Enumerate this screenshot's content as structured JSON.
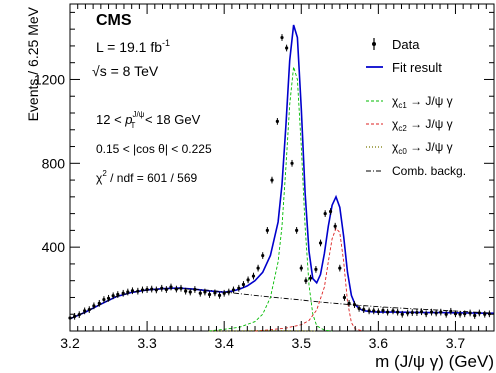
{
  "chart_data": {
    "type": "line",
    "xlabel": "m (J/ψ γ) (GeV)",
    "ylabel": "Events / 6.25 MeV",
    "xlim": [
      3.2,
      3.75
    ],
    "ylim": [
      0,
      1560
    ],
    "x_ticks": [
      3.2,
      3.3,
      3.4,
      3.5,
      3.6,
      3.7
    ],
    "x_tick_labels": [
      "3.2",
      "3.3",
      "3.4",
      "3.5",
      "3.6",
      "3.7"
    ],
    "y_ticks": [
      400,
      800,
      1200
    ],
    "y_tick_labels": [
      "400",
      "800",
      "1200"
    ],
    "annotations": {
      "experiment": "CMS",
      "lumi_prefix": "L = 19.1 fb",
      "lumi_sup": "-1",
      "energy_sqrt": "√",
      "energy_rest": "s = 8 TeV",
      "pt_left": "12 < ",
      "pt_p": "p",
      "pt_sup": "J/ψ",
      "pt_sub": "T",
      "pt_right": " < 18 GeV",
      "cos_cut": "0.15 < |cos θ| < 0.225",
      "chi2_left": "χ",
      "chi2_sup": "2",
      "chi2_right": " / ndf = 601 / 569"
    },
    "legend": {
      "placement": "top-right",
      "entries": [
        {
          "label": "Data",
          "style": "points",
          "color": "#000000"
        },
        {
          "label": "Fit result",
          "style": "solid",
          "color": "#0000cc"
        },
        {
          "label_main": "χ",
          "label_sub": "c1",
          "label_rest": " → J/ψ γ",
          "style": "dashed",
          "color": "#00bb00"
        },
        {
          "label_main": "χ",
          "label_sub": "c2",
          "label_rest": " → J/ψ γ",
          "style": "dashed",
          "color": "#dd2222"
        },
        {
          "label_main": "χ",
          "label_sub": "c0",
          "label_rest": " → J/ψ γ",
          "style": "dotted",
          "color": "#777700"
        },
        {
          "label": "Comb. backg.",
          "style": "dashdot",
          "color": "#000000"
        }
      ]
    },
    "series": [
      {
        "name": "Data",
        "kind": "points",
        "x": [
          3.2,
          3.206,
          3.212,
          3.219,
          3.225,
          3.231,
          3.238,
          3.244,
          3.25,
          3.256,
          3.262,
          3.269,
          3.275,
          3.281,
          3.288,
          3.294,
          3.3,
          3.306,
          3.312,
          3.319,
          3.325,
          3.331,
          3.338,
          3.344,
          3.35,
          3.356,
          3.362,
          3.369,
          3.375,
          3.381,
          3.388,
          3.394,
          3.4,
          3.406,
          3.412,
          3.419,
          3.425,
          3.431,
          3.438,
          3.444,
          3.45,
          3.456,
          3.462,
          3.469,
          3.475,
          3.481,
          3.488,
          3.494,
          3.5,
          3.506,
          3.512,
          3.519,
          3.525,
          3.531,
          3.538,
          3.544,
          3.55,
          3.556,
          3.562,
          3.569,
          3.575,
          3.581,
          3.588,
          3.594,
          3.6,
          3.606,
          3.612,
          3.619,
          3.625,
          3.631,
          3.638,
          3.644,
          3.65,
          3.656,
          3.662,
          3.669,
          3.675,
          3.681,
          3.688,
          3.694,
          3.7,
          3.706,
          3.712,
          3.719,
          3.725,
          3.731,
          3.738,
          3.744
        ],
        "y": [
          62,
          70,
          78,
          96,
          102,
          120,
          132,
          150,
          156,
          168,
          174,
          180,
          186,
          192,
          190,
          196,
          198,
          200,
          196,
          204,
          198,
          210,
          200,
          204,
          190,
          186,
          198,
          180,
          186,
          174,
          182,
          170,
          180,
          186,
          196,
          204,
          222,
          244,
          262,
          300,
          360,
          480,
          720,
          1000,
          1400,
          1350,
          800,
          480,
          300,
          240,
          252,
          294,
          420,
          560,
          570,
          500,
          300,
          160,
          132,
          126,
          108,
          102,
          96,
          96,
          92,
          98,
          90,
          96,
          90,
          80,
          86,
          88,
          88,
          92,
          82,
          90,
          86,
          90,
          80,
          94,
          82,
          80,
          82,
          86,
          74,
          86,
          80,
          82
        ],
        "errors": 16
      },
      {
        "name": "Fit result",
        "kind": "line",
        "x": [
          3.2,
          3.22,
          3.24,
          3.26,
          3.28,
          3.3,
          3.32,
          3.34,
          3.36,
          3.38,
          3.4,
          3.41,
          3.42,
          3.43,
          3.44,
          3.45,
          3.46,
          3.47,
          3.475,
          3.48,
          3.485,
          3.49,
          3.495,
          3.5,
          3.505,
          3.51,
          3.515,
          3.52,
          3.525,
          3.53,
          3.535,
          3.54,
          3.545,
          3.55,
          3.555,
          3.56,
          3.565,
          3.57,
          3.575,
          3.58,
          3.59,
          3.6,
          3.62,
          3.64,
          3.66,
          3.68,
          3.7,
          3.72,
          3.74,
          3.75
        ],
        "y": [
          58,
          90,
          128,
          164,
          184,
          196,
          202,
          205,
          200,
          192,
          185,
          190,
          200,
          215,
          240,
          280,
          360,
          520,
          700,
          980,
          1290,
          1460,
          1400,
          1060,
          660,
          380,
          250,
          230,
          270,
          370,
          500,
          600,
          640,
          590,
          450,
          280,
          170,
          125,
          108,
          98,
          92,
          90,
          90,
          89,
          88,
          88,
          87,
          86,
          85,
          85
        ]
      },
      {
        "name": "χc1 → J/ψ γ",
        "kind": "dashed",
        "x": [
          3.38,
          3.4,
          3.42,
          3.44,
          3.45,
          3.46,
          3.47,
          3.475,
          3.48,
          3.485,
          3.49,
          3.495,
          3.5,
          3.505,
          3.51,
          3.515,
          3.52,
          3.53,
          3.54
        ],
        "y": [
          0,
          8,
          18,
          45,
          80,
          160,
          330,
          500,
          780,
          1080,
          1260,
          1200,
          880,
          500,
          220,
          80,
          25,
          4,
          0
        ]
      },
      {
        "name": "χc2 → J/ψ γ",
        "kind": "dashed",
        "x": [
          3.44,
          3.46,
          3.48,
          3.5,
          3.51,
          3.52,
          3.53,
          3.535,
          3.54,
          3.545,
          3.55,
          3.555,
          3.56,
          3.565,
          3.57,
          3.58
        ],
        "y": [
          0,
          6,
          14,
          30,
          50,
          100,
          210,
          330,
          440,
          490,
          470,
          330,
          140,
          40,
          10,
          0
        ]
      },
      {
        "name": "χc0 → J/ψ γ",
        "kind": "dotted",
        "x": [
          3.38,
          3.42,
          3.44,
          3.46,
          3.48,
          3.5,
          3.52
        ],
        "y": [
          0,
          1,
          2,
          3,
          2,
          1,
          0
        ]
      },
      {
        "name": "Comb. backg.",
        "kind": "dashdot",
        "x": [
          3.2,
          3.22,
          3.24,
          3.26,
          3.28,
          3.3,
          3.32,
          3.34,
          3.36,
          3.38,
          3.4,
          3.42,
          3.44,
          3.46,
          3.48,
          3.5,
          3.52,
          3.54,
          3.56,
          3.58,
          3.6,
          3.62,
          3.64,
          3.66,
          3.68,
          3.7,
          3.72,
          3.74,
          3.75
        ],
        "y": [
          58,
          90,
          128,
          164,
          184,
          196,
          201,
          202,
          199,
          194,
          186,
          178,
          170,
          162,
          155,
          148,
          140,
          133,
          127,
          121,
          116,
          111,
          107,
          103,
          99,
          95,
          91,
          87,
          85
        ]
      }
    ]
  }
}
